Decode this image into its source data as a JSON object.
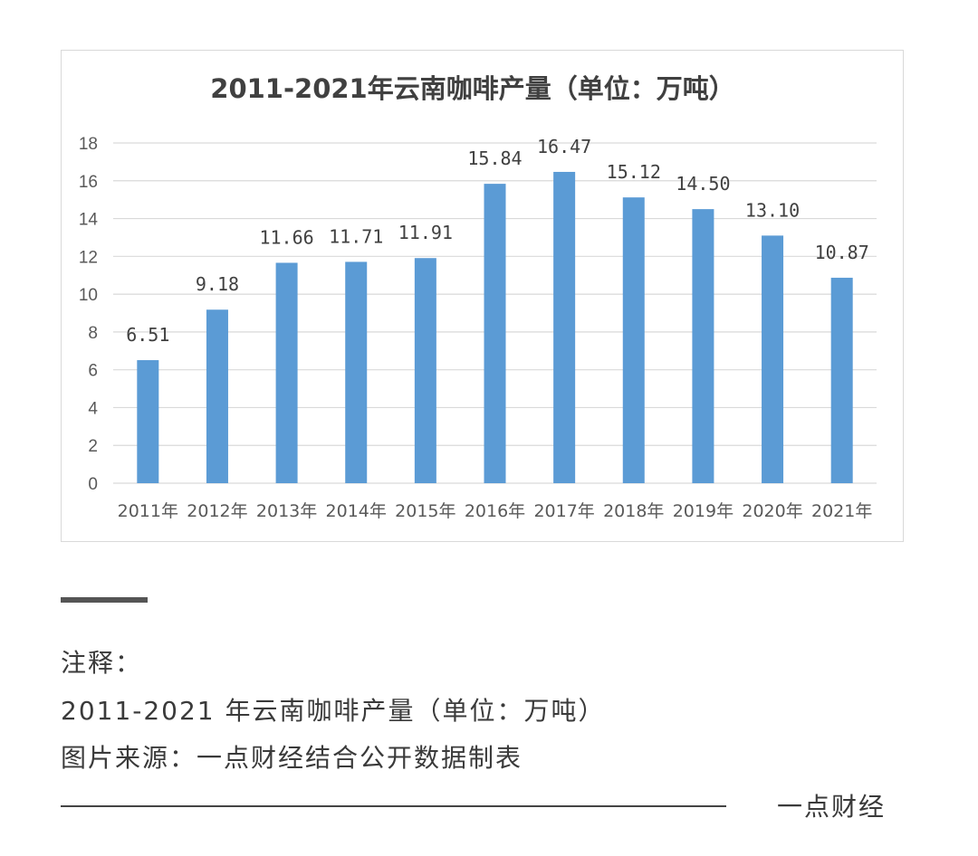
{
  "chart_data": {
    "type": "bar",
    "title": "2011-2021年云南咖啡产量（单位：万吨）",
    "categories": [
      "2011年",
      "2012年",
      "2013年",
      "2014年",
      "2015年",
      "2016年",
      "2017年",
      "2018年",
      "2019年",
      "2020年",
      "2021年"
    ],
    "values": [
      6.51,
      9.18,
      11.66,
      11.71,
      11.91,
      15.84,
      16.47,
      15.12,
      14.5,
      13.1,
      10.87
    ],
    "data_labels": [
      "6.51",
      "9.18",
      "11.66",
      "11.71",
      "11.91",
      "15.84",
      "16.47",
      "15.12",
      "14.50",
      "13.10",
      "10.87"
    ],
    "y_ticks": [
      "0",
      "2",
      "4",
      "6",
      "8",
      "10",
      "12",
      "14",
      "16",
      "18"
    ],
    "ylim": [
      0,
      18
    ],
    "xlabel": "",
    "ylabel": "",
    "grid": true,
    "legend": "none",
    "bar_color": "#5b9bd5",
    "grid_color": "#d9d9d9"
  },
  "notes": {
    "heading": "注释：",
    "line1": "2011-2021 年云南咖啡产量（单位：万吨）",
    "line2": "图片来源：一点财经结合公开数据制表"
  },
  "footer": {
    "brand": "一点财经"
  }
}
